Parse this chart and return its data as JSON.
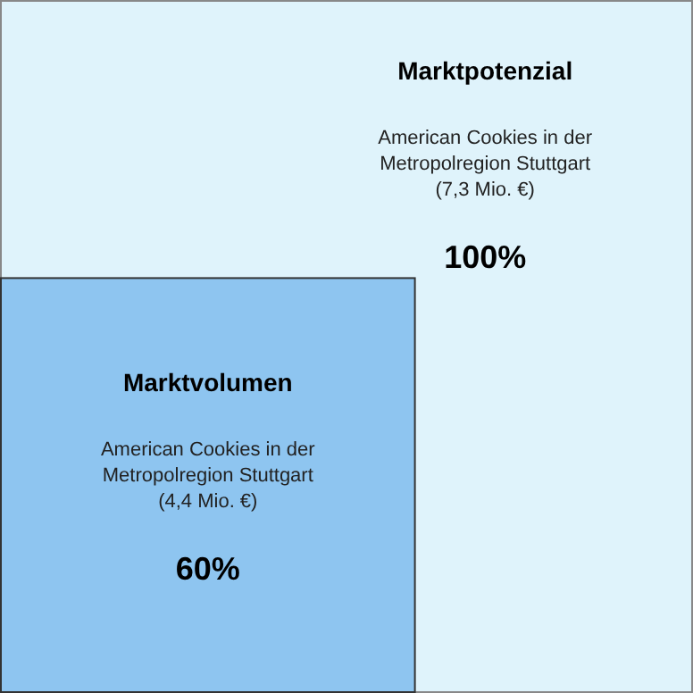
{
  "chart_data": {
    "type": "other",
    "categories": [
      "Marktpotenzial",
      "Marktvolumen"
    ],
    "values": [
      100,
      60
    ],
    "colors": [
      "#dff3fb",
      "#8ec5f0"
    ],
    "value_labels": [
      "100%",
      "60%"
    ],
    "annotations": [
      "American Cookies in der Metropolregion Stuttgart (7,3 Mio. €)",
      "American Cookies in der Metropolregion Stuttgart (4,4 Mio. €)"
    ]
  }
}
